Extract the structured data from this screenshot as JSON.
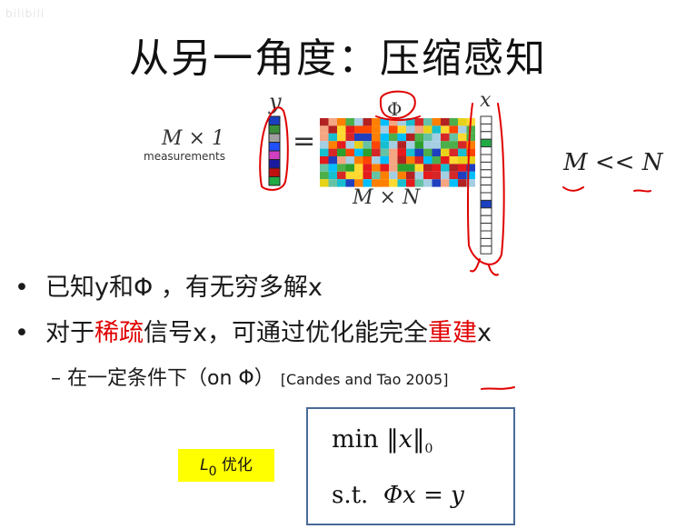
{
  "watermark": "bilibili",
  "title": "从另一角度：压缩感知",
  "figure": {
    "y_label": "y",
    "x_label": "x",
    "phi_label": "Φ",
    "measure_dim": "M × 1",
    "measure_caption": "measurements",
    "equals": "=",
    "matrix_dim": "M × N",
    "condition": "M << N"
  },
  "bullets": {
    "b1": "已知y和Φ ，有无穷多解x",
    "b2_prefix": "对于",
    "b2_red1": "稀疏",
    "b2_mid": "信号x，可通过优化能完全",
    "b2_red2": "重建",
    "b2_suffix": "x",
    "sub_prefix": "– 在一定条件下（on Φ）",
    "sub_cite": "[Candes and Tao 2005]"
  },
  "l0": {
    "prefix": "L",
    "subscript": "0",
    "suffix": " 优化"
  },
  "formula": {
    "line1_op": "min",
    "line1_var": "x",
    "line1_norm_sub": "0",
    "line2_st": "s.t.",
    "line2_expr": "Φx = y"
  },
  "colors": {
    "y_vector": [
      "#1a3fbf",
      "#3a8f3a",
      "#a0a0a0",
      "#2050ff",
      "#d040c0",
      "#1a1aa0",
      "#c01010",
      "#22aa44"
    ],
    "x_vector_filled": {
      "3": "#22aa44",
      "11": "#1a3fbf"
    },
    "annotation": "#e00000",
    "accent_yellow": "#ffff00",
    "box_border": "#4a6a96"
  }
}
